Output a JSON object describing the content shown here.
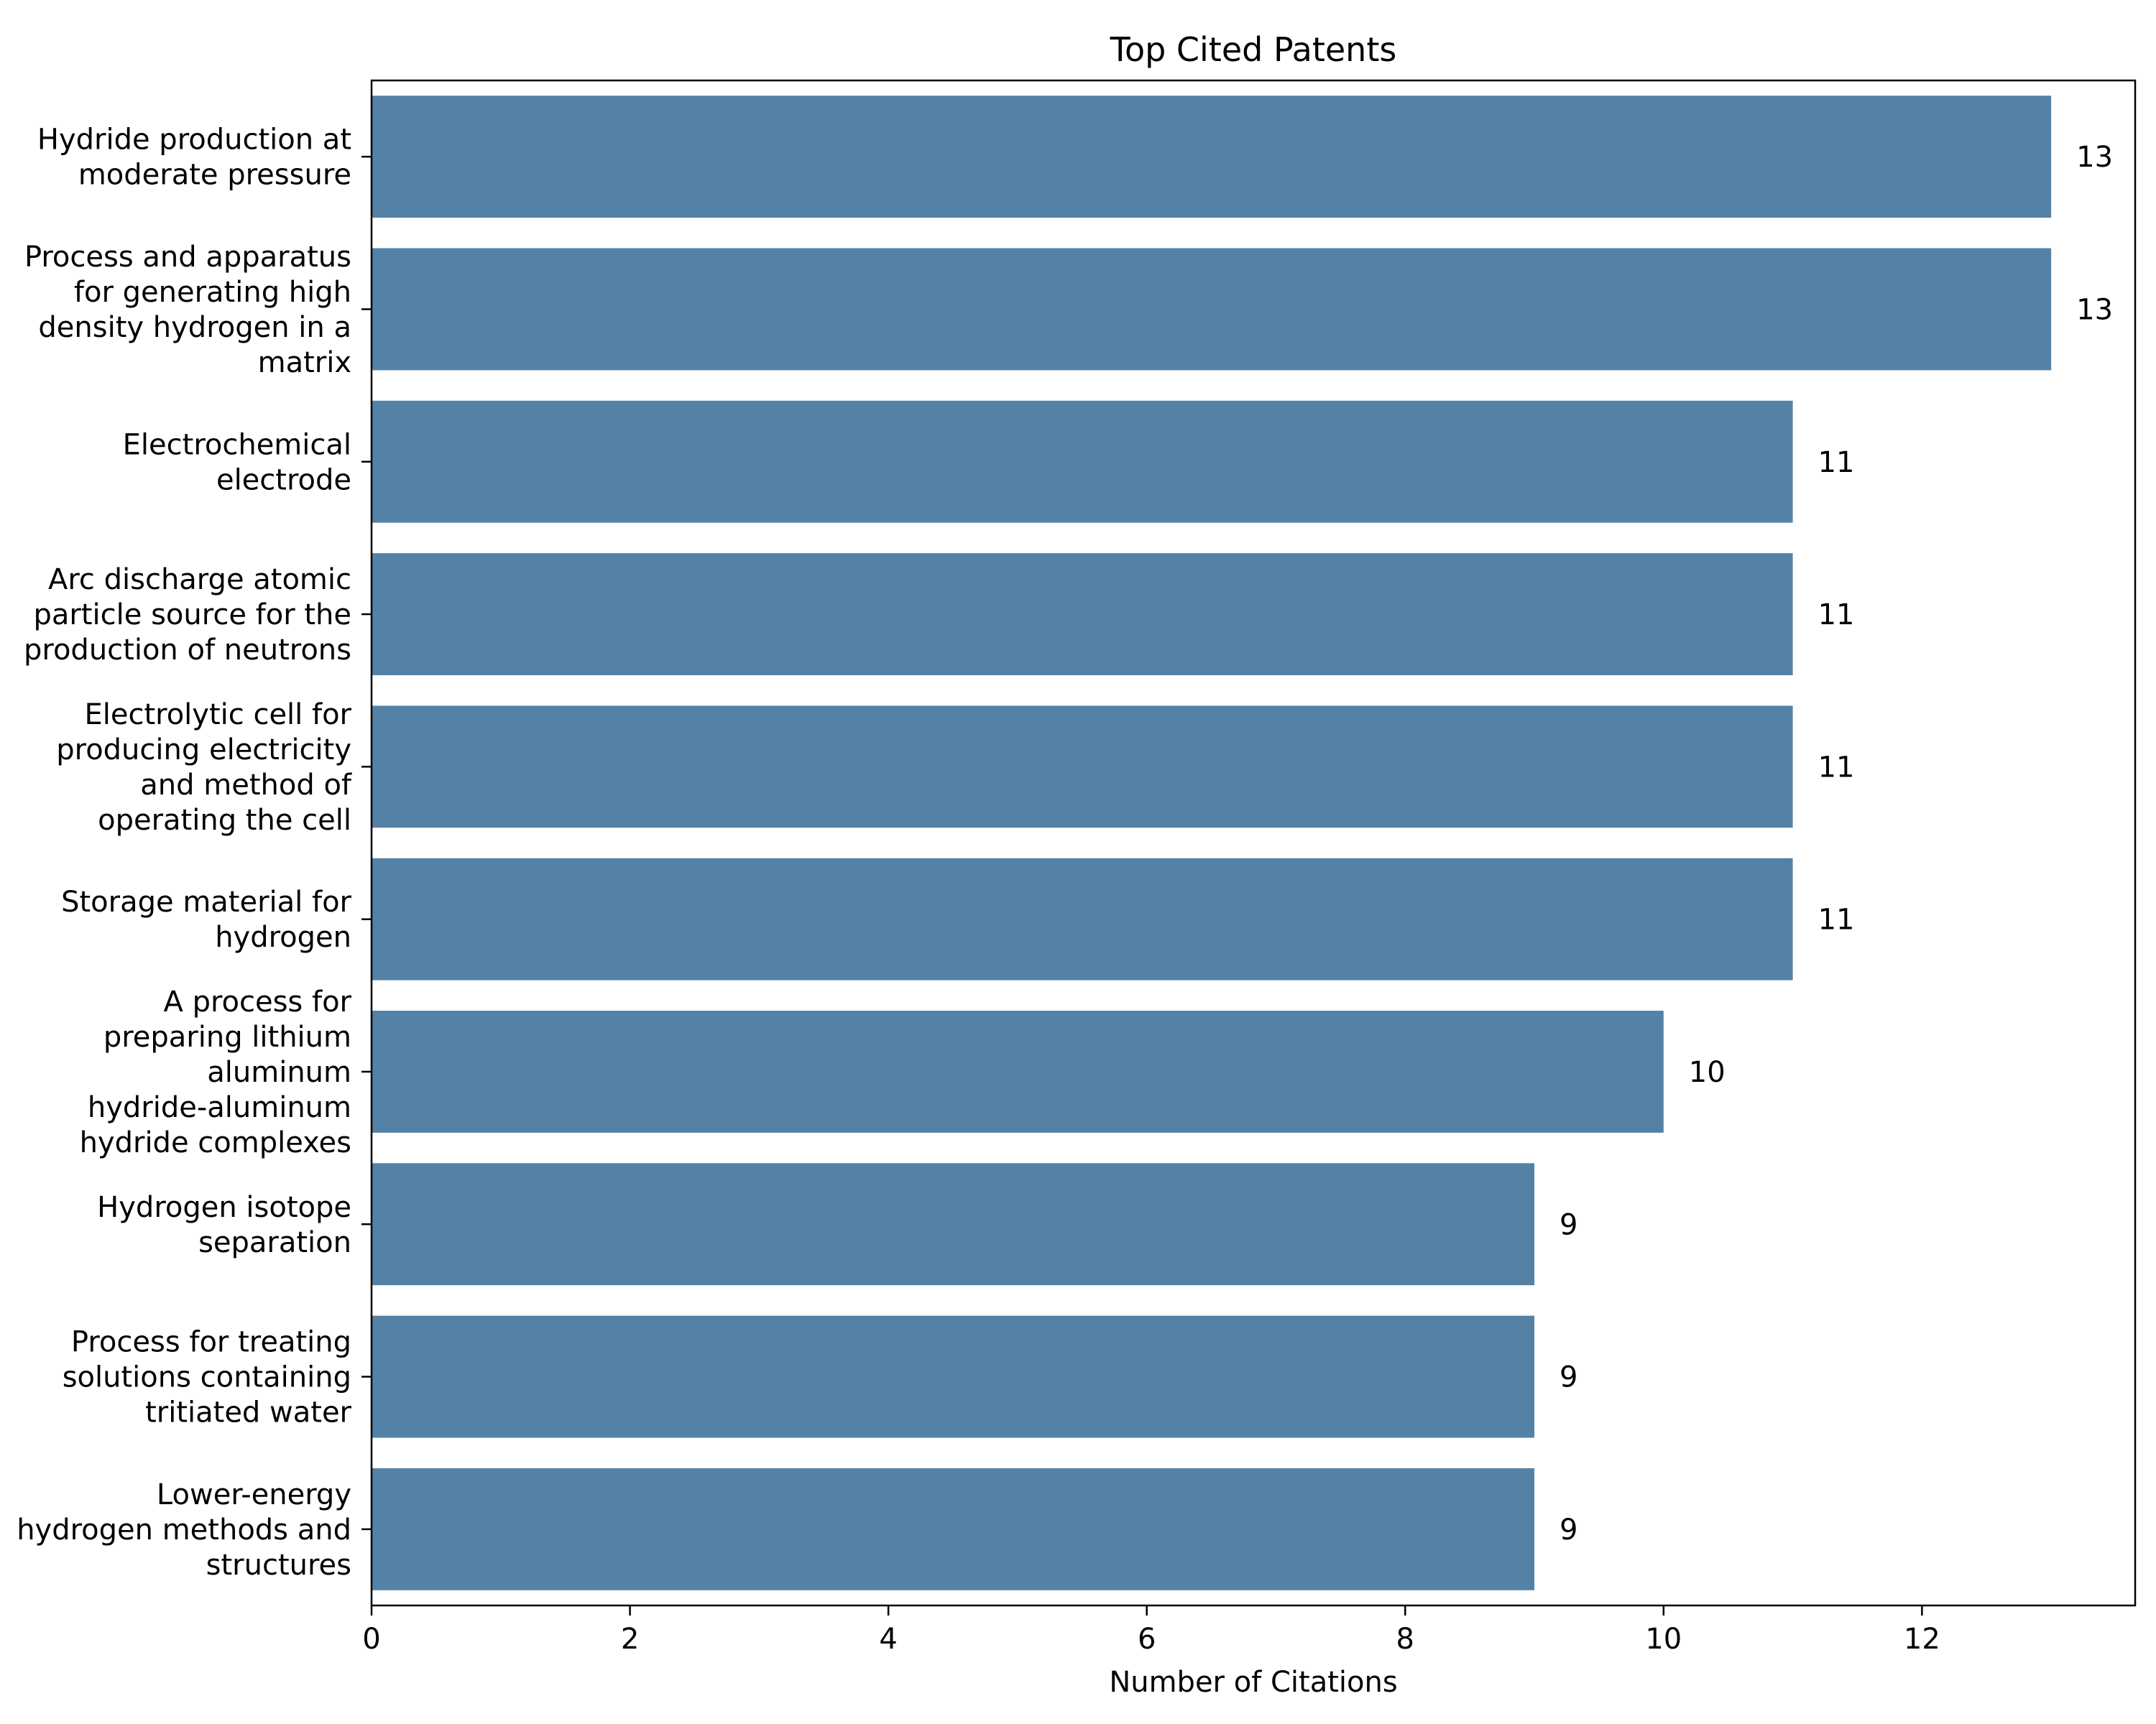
{
  "chart_data": {
    "type": "bar",
    "orientation": "horizontal",
    "title": "Top Cited Patents",
    "xlabel": "Number of Citations",
    "ylabel": "",
    "xlim": [
      0,
      13.65
    ],
    "xticks": [
      0,
      2,
      4,
      6,
      8,
      10,
      12
    ],
    "bar_color": "#5482a7",
    "grid": false,
    "legend": "none",
    "categories": [
      [
        "Hydride production at",
        "moderate pressure"
      ],
      [
        "Process and apparatus",
        "for generating high",
        "density hydrogen in a",
        "matrix"
      ],
      [
        "Electrochemical",
        "electrode"
      ],
      [
        "Arc discharge atomic",
        "particle source for the",
        "production of neutrons"
      ],
      [
        "Electrolytic cell for",
        "producing electricity",
        "and method of",
        "operating the cell"
      ],
      [
        "Storage material for",
        "hydrogen"
      ],
      [
        "A process for",
        "preparing lithium",
        "aluminum",
        "hydride-aluminum",
        "hydride complexes"
      ],
      [
        "Hydrogen isotope",
        "separation"
      ],
      [
        "Process for treating",
        "solutions containing",
        "tritiated water"
      ],
      [
        "Lower-energy",
        "hydrogen methods and",
        "structures"
      ]
    ],
    "values": [
      13,
      13,
      11,
      11,
      11,
      11,
      10,
      9,
      9,
      9
    ],
    "data_labels": [
      "13",
      "13",
      "11",
      "11",
      "11",
      "11",
      "10",
      "9",
      "9",
      "9"
    ]
  }
}
